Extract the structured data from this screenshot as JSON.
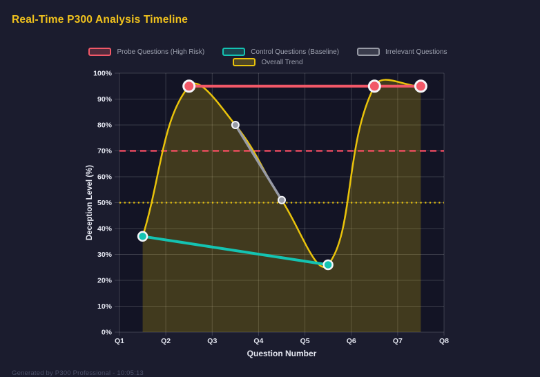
{
  "page": {
    "title": "Real-Time P300 Analysis Timeline",
    "footer": "Generated by P300 Professional - 10:05:13"
  },
  "colors": {
    "background": "#1b1c2e",
    "title": "#f2c31d",
    "plot_fill": "rgba(10,12,26,0.45)",
    "grid": "rgba(255,255,255,0.17)",
    "axis_text": "#e4e6f0",
    "legend_text": "#9da1af",
    "footer_text": "#4c5169",
    "point_ring": "#f4f5f9"
  },
  "chart_data": {
    "type": "line",
    "title": "Real-Time P300 Analysis Timeline",
    "xlabel": "Question Number",
    "ylabel": "Deception Level (%)",
    "x_range": [
      1,
      8
    ],
    "ylim": [
      0,
      100
    ],
    "grid": true,
    "legend_position": "top-center",
    "x_ticks": [
      {
        "value": 1,
        "label": "Q1"
      },
      {
        "value": 2,
        "label": "Q2"
      },
      {
        "value": 3,
        "label": "Q3"
      },
      {
        "value": 4,
        "label": "Q4"
      },
      {
        "value": 5,
        "label": "Q5"
      },
      {
        "value": 6,
        "label": "Q6"
      },
      {
        "value": 7,
        "label": "Q7"
      },
      {
        "value": 8,
        "label": "Q8"
      }
    ],
    "y_ticks": [
      {
        "value": 0,
        "label": "0%"
      },
      {
        "value": 10,
        "label": "10%"
      },
      {
        "value": 20,
        "label": "20%"
      },
      {
        "value": 30,
        "label": "30%"
      },
      {
        "value": 40,
        "label": "40%"
      },
      {
        "value": 50,
        "label": "50%"
      },
      {
        "value": 60,
        "label": "60%"
      },
      {
        "value": 70,
        "label": "70%"
      },
      {
        "value": 80,
        "label": "80%"
      },
      {
        "value": 90,
        "label": "90%"
      },
      {
        "value": 100,
        "label": "100%"
      }
    ],
    "series": [
      {
        "name": "Probe Questions (High Risk)",
        "color": "#f25868",
        "curve": "linear",
        "line_width": 4,
        "point_radius": 8,
        "point_border": 3,
        "points": [
          [
            2.5,
            95
          ],
          [
            6.5,
            95
          ],
          [
            7.5,
            95
          ]
        ]
      },
      {
        "name": "Control Questions (Baseline)",
        "color": "#14c3b2",
        "curve": "linear",
        "line_width": 4,
        "point_radius": 6.5,
        "point_border": 2.5,
        "points": [
          [
            1.5,
            37
          ],
          [
            5.5,
            26
          ]
        ]
      },
      {
        "name": "Irrelevant Questions",
        "color": "#989ba6",
        "curve": "linear",
        "line_width": 3.5,
        "point_radius": 5,
        "point_border": 2,
        "points": [
          [
            3.5,
            80
          ],
          [
            4.5,
            51
          ]
        ]
      },
      {
        "name": "Overall Trend",
        "color": "#e9c30b",
        "curve": "spline",
        "line_width": 2.5,
        "point_radius": 0,
        "point_border": 0,
        "fill": "rgba(233,195,11,0.22)",
        "points": [
          [
            1.5,
            37
          ],
          [
            2.5,
            95
          ],
          [
            3.5,
            80
          ],
          [
            4.5,
            51
          ],
          [
            5.5,
            26
          ],
          [
            6.5,
            95
          ],
          [
            7.5,
            95
          ]
        ]
      }
    ],
    "thresholds": [
      {
        "value": 70,
        "color": "#ff4f66",
        "style": "dashed"
      },
      {
        "value": 50,
        "color": "#e9c30b",
        "style": "dotted"
      }
    ]
  }
}
